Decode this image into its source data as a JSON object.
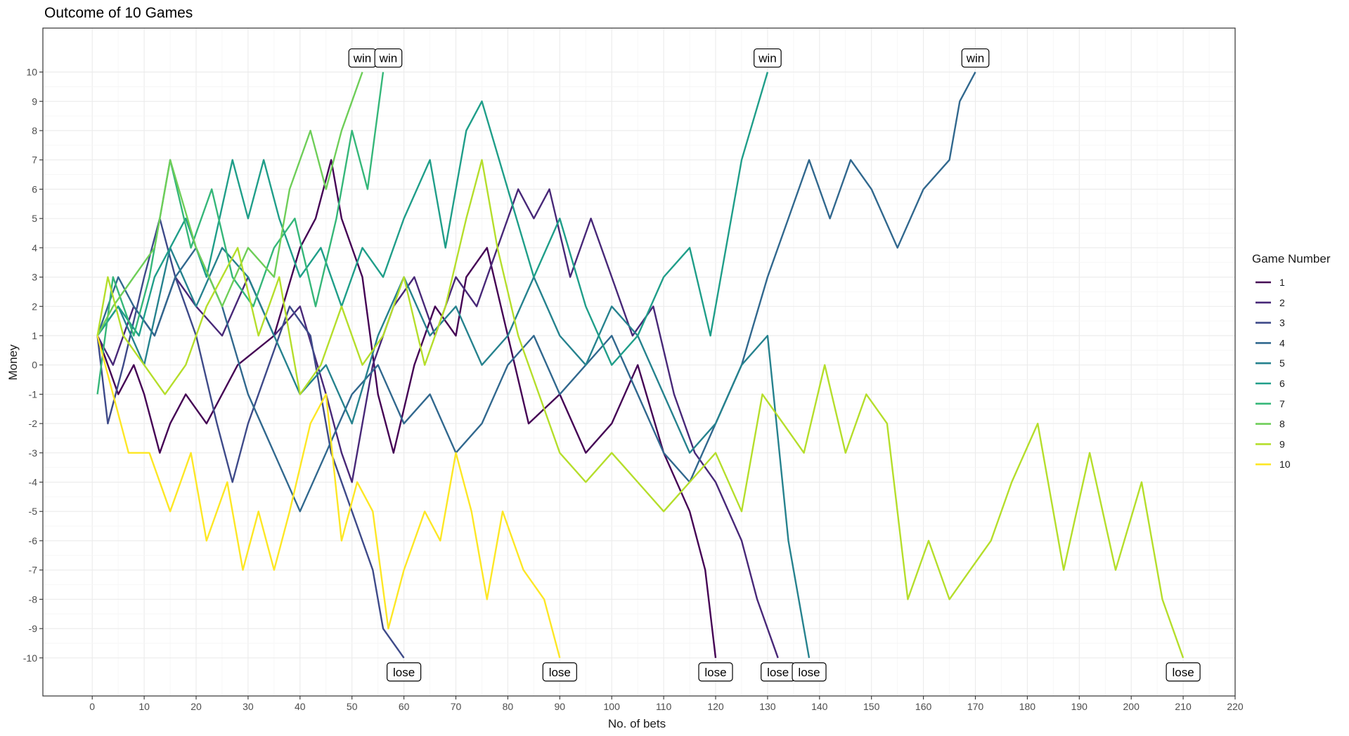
{
  "chart_data": {
    "type": "line",
    "title": "Outcome of 10 Games",
    "xlabel": "No. of bets",
    "ylabel": "Money",
    "xlim": [
      -9.5,
      220
    ],
    "ylim": [
      -11.3,
      11.5
    ],
    "x_ticks": [
      0,
      10,
      20,
      30,
      40,
      50,
      60,
      70,
      80,
      90,
      100,
      110,
      120,
      130,
      140,
      150,
      160,
      170,
      180,
      190,
      200,
      210,
      220
    ],
    "y_ticks": [
      10,
      9,
      8,
      7,
      6,
      5,
      4,
      3,
      2,
      1,
      0,
      -1,
      -2,
      -3,
      -4,
      -5,
      -6,
      -7,
      -8,
      -9,
      -10
    ],
    "grid": true,
    "legend": {
      "title": "Game Number",
      "position": "right"
    },
    "series": [
      {
        "name": "1",
        "color": "#440154",
        "x": [
          1,
          5,
          8,
          10,
          13,
          15,
          18,
          22,
          28,
          35,
          40,
          43,
          46,
          48,
          52,
          55,
          58,
          62,
          66,
          70,
          72,
          76,
          80,
          84,
          90,
          95,
          100,
          105,
          110,
          115,
          118,
          120
        ],
        "y": [
          1,
          -1,
          0,
          -1,
          -3,
          -2,
          -1,
          -2,
          0,
          1,
          4,
          5,
          7,
          5,
          3,
          -1,
          -3,
          0,
          2,
          1,
          3,
          4,
          1,
          -2,
          -1,
          -3,
          -2,
          0,
          -3,
          -5,
          -7,
          -10
        ]
      },
      {
        "name": "2",
        "color": "#482878",
        "x": [
          1,
          4,
          8,
          12,
          16,
          20,
          25,
          30,
          35,
          40,
          45,
          48,
          50,
          54,
          58,
          62,
          66,
          70,
          74,
          78,
          82,
          85,
          88,
          92,
          96,
          100,
          104,
          108,
          112,
          116,
          120,
          125,
          128,
          132
        ],
        "y": [
          1,
          0,
          2,
          1,
          3,
          2,
          1,
          3,
          1,
          2,
          -1,
          -3,
          -4,
          0,
          2,
          3,
          1,
          3,
          2,
          4,
          6,
          5,
          6,
          3,
          5,
          3,
          1,
          2,
          -1,
          -3,
          -4,
          -6,
          -8,
          -10
        ]
      },
      {
        "name": "3",
        "color": "#3e4a89",
        "x": [
          1,
          3,
          6,
          10,
          13,
          16,
          20,
          24,
          27,
          30,
          34,
          38,
          42,
          46,
          50,
          54,
          56,
          60
        ],
        "y": [
          1,
          -2,
          0,
          3,
          5,
          3,
          1,
          -2,
          -4,
          -2,
          0,
          2,
          1,
          -3,
          -5,
          -7,
          -9,
          -10
        ]
      },
      {
        "name": "4",
        "color": "#31688e",
        "x": [
          1,
          5,
          8,
          12,
          16,
          20,
          25,
          30,
          35,
          40,
          45,
          50,
          55,
          60,
          65,
          70,
          75,
          80,
          85,
          90,
          95,
          100,
          105,
          110,
          115,
          120,
          125,
          130,
          134,
          138,
          142,
          146,
          150,
          155,
          160,
          165,
          167,
          170
        ],
        "y": [
          1,
          3,
          2,
          1,
          3,
          4,
          2,
          -1,
          -3,
          -5,
          -3,
          -1,
          0,
          -2,
          -1,
          -3,
          -2,
          0,
          1,
          -1,
          0,
          1,
          -1,
          -3,
          -4,
          -2,
          0,
          3,
          5,
          7,
          5,
          7,
          6,
          4,
          6,
          7,
          9,
          10
        ]
      },
      {
        "name": "5",
        "color": "#26828e",
        "x": [
          1,
          5,
          10,
          15,
          20,
          25,
          30,
          35,
          40,
          45,
          50,
          55,
          60,
          65,
          70,
          75,
          80,
          85,
          90,
          95,
          100,
          105,
          110,
          115,
          120,
          125,
          130,
          134,
          138
        ],
        "y": [
          1,
          2,
          0,
          4,
          2,
          4,
          3,
          1,
          -1,
          0,
          -2,
          1,
          3,
          1,
          2,
          0,
          1,
          3,
          1,
          0,
          2,
          1,
          -1,
          -3,
          -2,
          0,
          1,
          -6,
          -10
        ]
      },
      {
        "name": "6",
        "color": "#1f9e89",
        "x": [
          1,
          5,
          9,
          12,
          15,
          18,
          22,
          27,
          30,
          33,
          36,
          40,
          44,
          48,
          52,
          56,
          60,
          65,
          68,
          72,
          75,
          80,
          85,
          90,
          95,
          100,
          105,
          110,
          115,
          119,
          125,
          130
        ],
        "y": [
          1,
          2,
          1,
          3,
          4,
          5,
          3,
          7,
          5,
          7,
          5,
          3,
          4,
          2,
          4,
          3,
          5,
          7,
          4,
          8,
          9,
          6,
          3,
          5,
          2,
          0,
          1,
          3,
          4,
          1,
          7,
          10
        ]
      },
      {
        "name": "7",
        "color": "#35b779",
        "x": [
          1,
          4,
          8,
          11,
          15,
          19,
          23,
          27,
          31,
          35,
          39,
          43,
          47,
          50,
          53,
          56
        ],
        "y": [
          -1,
          3,
          1,
          3,
          7,
          4,
          6,
          3,
          2,
          4,
          5,
          2,
          5,
          8,
          6,
          10
        ]
      },
      {
        "name": "8",
        "color": "#6ece58",
        "x": [
          1,
          4,
          8,
          12,
          15,
          20,
          25,
          30,
          35,
          38,
          42,
          45,
          48,
          50,
          52
        ],
        "y": [
          1,
          2,
          3,
          4,
          7,
          4,
          2,
          4,
          3,
          6,
          8,
          6,
          8,
          9,
          10
        ]
      },
      {
        "name": "9",
        "color": "#b5de2b",
        "x": [
          1,
          3,
          6,
          10,
          14,
          18,
          22,
          28,
          32,
          36,
          40,
          44,
          48,
          52,
          56,
          60,
          64,
          68,
          72,
          75,
          78,
          82,
          86,
          90,
          95,
          100,
          105,
          110,
          115,
          120,
          125,
          129,
          133,
          137,
          141,
          145,
          149,
          153,
          157,
          161,
          165,
          169,
          173,
          177,
          182,
          187,
          192,
          197,
          202,
          206,
          210
        ],
        "y": [
          1,
          3,
          1,
          0,
          -1,
          0,
          2,
          4,
          1,
          3,
          -1,
          0,
          2,
          0,
          1,
          3,
          0,
          2,
          5,
          7,
          4,
          1,
          -1,
          -3,
          -4,
          -3,
          -4,
          -5,
          -4,
          -3,
          -5,
          -1,
          -2,
          -3,
          0,
          -3,
          -1,
          -2,
          -8,
          -6,
          -8,
          -7,
          -6,
          -4,
          -2,
          -7,
          -3,
          -7,
          -4,
          -8,
          -10
        ]
      },
      {
        "name": "10",
        "color": "#fde725",
        "x": [
          1,
          4,
          7,
          11,
          15,
          19,
          22,
          26,
          29,
          32,
          35,
          38,
          42,
          45,
          48,
          51,
          54,
          57,
          60,
          64,
          67,
          70,
          73,
          76,
          79,
          83,
          87,
          90
        ],
        "y": [
          1,
          -1,
          -3,
          -3,
          -5,
          -3,
          -6,
          -4,
          -7,
          -5,
          -7,
          -5,
          -2,
          -1,
          -6,
          -4,
          -5,
          -9,
          -7,
          -5,
          -6,
          -3,
          -5,
          -8,
          -5,
          -7,
          -8,
          -10
        ]
      }
    ],
    "annotations": [
      {
        "text": "win",
        "x": 52,
        "y": 10
      },
      {
        "text": "win",
        "x": 57,
        "y": 10
      },
      {
        "text": "win",
        "x": 130,
        "y": 10
      },
      {
        "text": "win",
        "x": 170,
        "y": 10
      },
      {
        "text": "lose",
        "x": 60,
        "y": -10
      },
      {
        "text": "lose",
        "x": 90,
        "y": -10
      },
      {
        "text": "lose",
        "x": 120,
        "y": -10
      },
      {
        "text": "lose",
        "x": 132,
        "y": -10
      },
      {
        "text": "lose",
        "x": 138,
        "y": -10
      },
      {
        "text": "lose",
        "x": 210,
        "y": -10
      }
    ]
  }
}
